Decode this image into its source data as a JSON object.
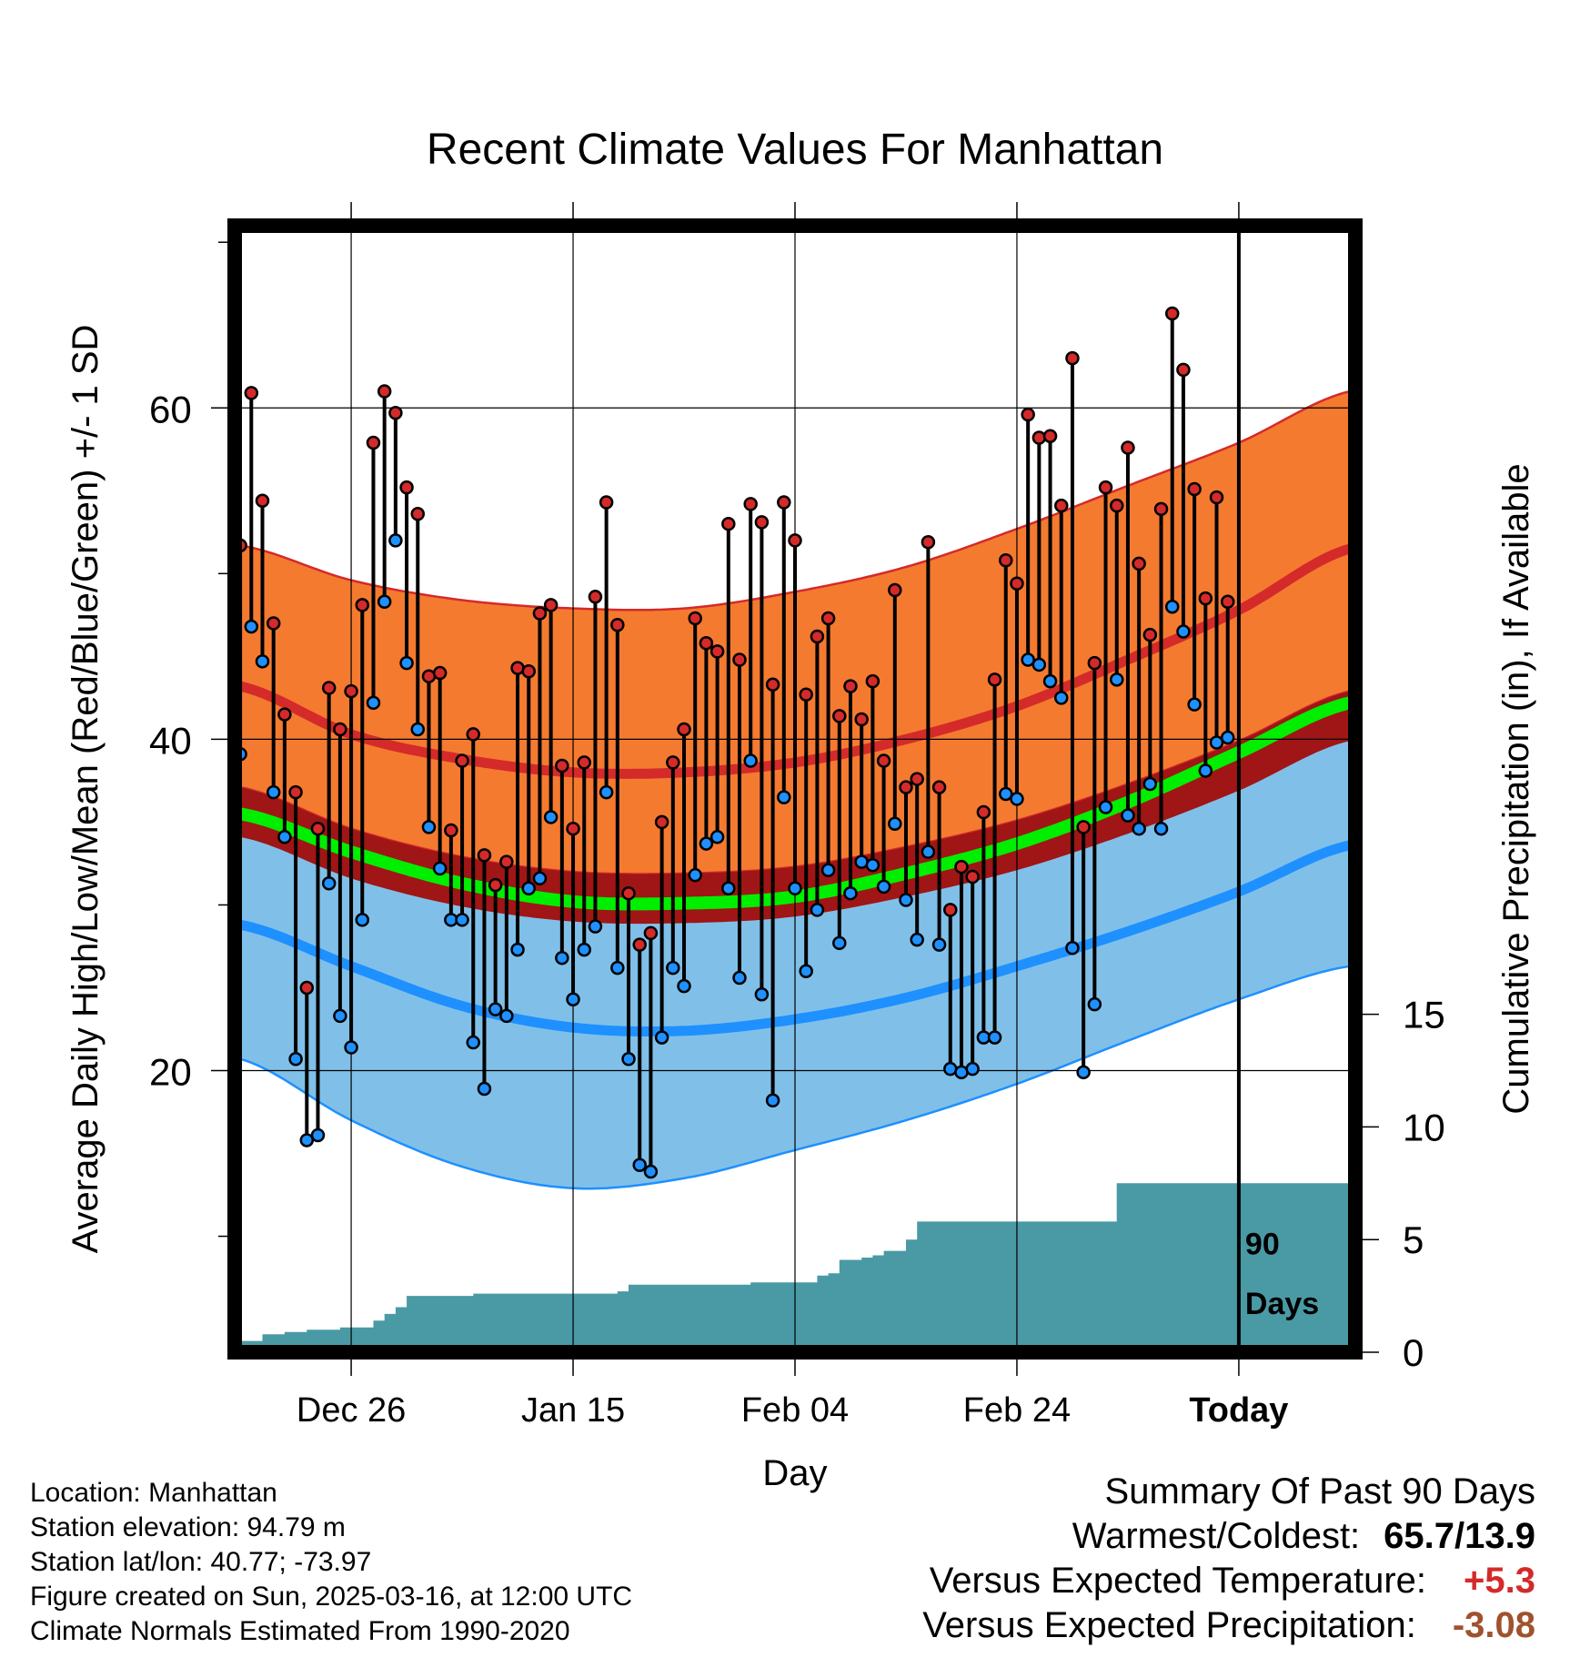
{
  "chart_data": {
    "type": "line",
    "title": "Recent Climate Values For Manhattan",
    "xlabel": "Day",
    "ylabel": "Average Daily High/Low/Mean (Red/Blue/Green) +/- 1 SD",
    "y2label": "Cumulative Precipitation (in), If Available",
    "x_tick_labels": [
      "Dec 26",
      "Jan 15",
      "Feb 04",
      "Feb 24",
      "Today"
    ],
    "x_tick_days": [
      10,
      30,
      50,
      70,
      90
    ],
    "y_ticks": [
      20,
      40,
      60
    ],
    "y2_ticks": [
      0,
      5,
      10,
      15
    ],
    "days_marker": "90",
    "days_marker_word": "Days",
    "ylim": [
      3,
      71
    ],
    "y2lim": [
      0,
      50
    ],
    "xlim": [
      -0.5,
      100.5
    ],
    "grid": true,
    "colors": {
      "high_band": "#f47a30",
      "high_mean": "#d42a2a",
      "low_band": "#80c0e8",
      "low_mean": "#1e90ff",
      "mean_line": "#00ee00",
      "overlap": "#a01515",
      "precip": "#4a9aa5",
      "high_point": "#d42a2a",
      "low_point": "#1e90ff"
    },
    "normal_curve_days": [
      0,
      10,
      20,
      30,
      40,
      50,
      60,
      70,
      80,
      90,
      100
    ],
    "normal_high_mean": [
      43.2,
      40.3,
      38.8,
      38.0,
      38.0,
      38.6,
      40.0,
      42.0,
      44.8,
      47.8,
      51.5
    ],
    "normal_high_upper": [
      51.7,
      49.6,
      48.4,
      47.9,
      47.9,
      48.9,
      50.4,
      52.7,
      55.3,
      57.9,
      61.0
    ],
    "normal_high_lower": [
      37.1,
      34.6,
      32.9,
      32.0,
      31.9,
      32.3,
      33.5,
      35.1,
      37.3,
      39.9,
      42.9
    ],
    "normal_low_mean": [
      28.8,
      26.3,
      23.9,
      22.6,
      22.4,
      23.1,
      24.4,
      26.3,
      28.4,
      30.8,
      33.6
    ],
    "normal_low_upper": [
      37.1,
      34.6,
      32.9,
      32.0,
      31.9,
      32.3,
      33.5,
      35.1,
      37.3,
      39.9,
      40.5
    ],
    "normal_low_lower": [
      20.7,
      17.0,
      14.2,
      12.9,
      13.5,
      15.2,
      17.0,
      19.2,
      21.8,
      24.3,
      26.3
    ],
    "normal_mean": [
      35.5,
      33.2,
      31.3,
      30.2,
      30.1,
      30.5,
      31.9,
      33.7,
      36.2,
      39.2,
      42.2
    ],
    "daily_high": [
      51.7,
      60.9,
      54.4,
      47.0,
      41.5,
      36.8,
      25.0,
      34.6,
      43.1,
      40.6,
      42.9,
      48.1,
      57.9,
      61.0,
      59.7,
      55.2,
      53.6,
      43.8,
      44.0,
      34.5,
      38.7,
      40.3,
      33.0,
      31.2,
      32.6,
      44.3,
      44.1,
      47.6,
      48.1,
      38.4,
      34.6,
      38.6,
      48.6,
      54.3,
      46.9,
      30.7,
      27.6,
      28.3,
      35.0,
      38.6,
      40.6,
      47.3,
      45.8,
      45.3,
      53.0,
      44.8,
      54.2,
      53.1,
      43.3,
      54.3,
      52.0,
      42.7,
      46.2,
      47.3,
      41.4,
      43.2,
      41.2,
      43.5,
      38.7,
      49.0,
      37.1,
      37.6,
      51.9,
      37.1,
      29.7,
      32.3,
      31.7,
      35.6,
      43.6,
      50.8,
      49.4,
      59.6,
      58.2,
      58.3,
      54.1,
      63.0,
      34.7,
      44.6,
      55.2,
      54.1,
      57.6,
      50.6,
      46.3,
      53.9,
      65.7,
      62.3,
      55.1,
      48.5,
      54.6,
      48.3
    ],
    "daily_low": [
      39.1,
      46.8,
      44.7,
      36.8,
      34.1,
      20.7,
      15.8,
      16.1,
      31.3,
      23.3,
      21.4,
      29.1,
      42.2,
      48.3,
      52.0,
      44.6,
      40.6,
      34.7,
      32.2,
      29.1,
      29.1,
      21.7,
      18.9,
      23.7,
      23.3,
      27.3,
      31.0,
      31.6,
      35.3,
      26.8,
      24.3,
      27.3,
      28.7,
      36.8,
      26.2,
      20.7,
      14.3,
      13.9,
      22.0,
      26.2,
      25.1,
      31.8,
      33.7,
      34.1,
      31.0,
      25.6,
      38.7,
      24.6,
      18.2,
      36.5,
      31.0,
      26.0,
      29.7,
      32.1,
      27.7,
      30.7,
      32.6,
      32.4,
      31.1,
      34.9,
      30.3,
      27.9,
      33.2,
      27.6,
      20.1,
      19.9,
      20.1,
      22.0,
      22.0,
      36.7,
      36.4,
      44.8,
      44.5,
      43.5,
      42.5,
      27.4,
      19.9,
      24.0,
      35.9,
      43.6,
      35.4,
      34.6,
      37.3,
      34.6,
      48.0,
      46.5,
      42.1,
      38.1,
      39.8,
      40.1
    ],
    "precip_days": [
      0,
      1,
      2,
      3,
      4,
      5,
      6,
      7,
      8,
      9,
      10,
      11,
      12,
      13,
      14,
      15,
      16,
      17,
      18,
      19,
      20,
      21,
      22,
      23,
      24,
      25,
      26,
      27,
      28,
      29,
      30,
      31,
      32,
      33,
      34,
      35,
      36,
      37,
      38,
      39,
      40,
      41,
      42,
      43,
      44,
      45,
      46,
      47,
      48,
      49,
      50,
      51,
      52,
      53,
      54,
      55,
      56,
      57,
      58,
      59,
      60,
      61,
      62,
      63,
      64,
      65,
      66,
      67,
      68,
      69,
      70,
      71,
      72,
      73,
      74,
      75,
      76,
      77,
      78,
      79,
      80,
      81,
      82,
      83,
      84,
      85,
      86,
      87,
      88,
      89,
      90,
      91,
      92,
      93,
      94,
      95,
      96,
      97,
      98,
      99,
      100
    ],
    "precip_cum": [
      0.5,
      0.5,
      0.8,
      0.8,
      0.9,
      0.9,
      1.0,
      1.0,
      1.0,
      1.1,
      1.1,
      1.1,
      1.4,
      1.7,
      2.0,
      2.5,
      2.5,
      2.5,
      2.5,
      2.5,
      2.5,
      2.6,
      2.6,
      2.6,
      2.6,
      2.6,
      2.6,
      2.6,
      2.6,
      2.6,
      2.6,
      2.6,
      2.6,
      2.6,
      2.7,
      3.0,
      3.0,
      3.0,
      3.0,
      3.0,
      3.0,
      3.0,
      3.0,
      3.0,
      3.0,
      3.0,
      3.1,
      3.1,
      3.1,
      3.1,
      3.1,
      3.1,
      3.4,
      3.5,
      4.1,
      4.1,
      4.2,
      4.3,
      4.5,
      4.5,
      5.0,
      5.8,
      5.8,
      5.8,
      5.8,
      5.8,
      5.8,
      5.8,
      5.8,
      5.8,
      5.8,
      5.8,
      5.8,
      5.8,
      5.8,
      5.8,
      5.8,
      5.8,
      5.8,
      7.5,
      7.5,
      7.5,
      7.5,
      7.5,
      7.5,
      7.5,
      7.5,
      7.5,
      7.5,
      7.5,
      7.5,
      7.5,
      7.5,
      7.5,
      7.5,
      7.5,
      7.5,
      7.5,
      7.5,
      7.5,
      7.5
    ]
  },
  "info": {
    "location": "Location: Manhattan",
    "elevation": "Station elevation: 94.79 m",
    "latlon": "Station lat/lon: 40.77; -73.97",
    "created": "Figure created on Sun, 2025-03-16, at 12:00 UTC",
    "normals": "Climate Normals Estimated From 1990-2020"
  },
  "summary": {
    "title": "Summary Of Past 90 Days",
    "warmest_coldest_label": "Warmest/Coldest:",
    "warmest_coldest_value": "65.7/13.9",
    "temp_label": "Versus Expected Temperature:",
    "temp_value": "+5.3",
    "precip_label": "Versus Expected Precipitation:",
    "precip_value": "-3.08"
  }
}
